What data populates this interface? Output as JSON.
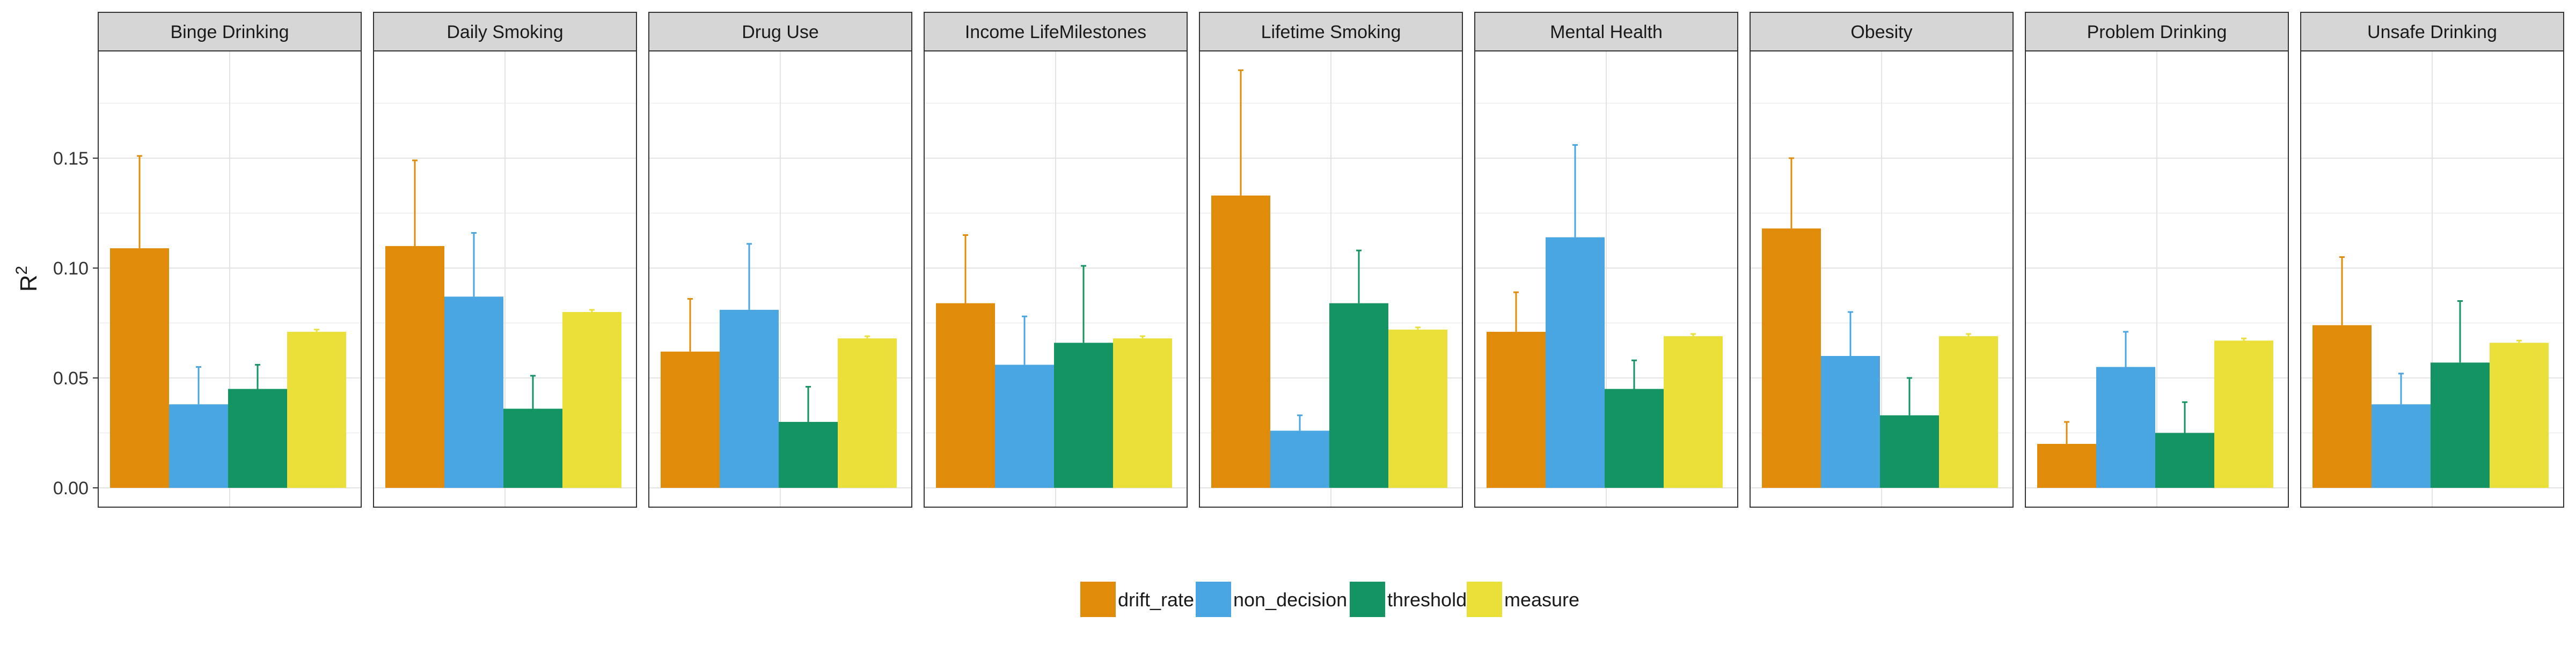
{
  "chart_data": {
    "type": "bar",
    "ylabel": "R",
    "ylabel_superscript": "2",
    "ylim": [
      0,
      0.2
    ],
    "yticks": [
      0.0,
      0.05,
      0.1,
      0.15
    ],
    "ytick_labels": [
      "0.00",
      "0.05",
      "0.10",
      "0.15"
    ],
    "grid": true,
    "legend_position": "bottom",
    "series": [
      {
        "name": "drift_rate",
        "color": "#E08C0A"
      },
      {
        "name": "non_decision",
        "color": "#4AA5E3"
      },
      {
        "name": "threshold",
        "color": "#149363"
      },
      {
        "name": "measure",
        "color": "#EBE03A"
      }
    ],
    "panels": [
      {
        "title": "Binge Drinking",
        "values": [
          0.109,
          0.038,
          0.045,
          0.071
        ],
        "errors": [
          0.042,
          0.017,
          0.011,
          0.001
        ]
      },
      {
        "title": "Daily Smoking",
        "values": [
          0.11,
          0.087,
          0.036,
          0.08
        ],
        "errors": [
          0.039,
          0.029,
          0.015,
          0.001
        ]
      },
      {
        "title": "Drug Use",
        "values": [
          0.062,
          0.081,
          0.03,
          0.068
        ],
        "errors": [
          0.024,
          0.03,
          0.016,
          0.001
        ]
      },
      {
        "title": "Income LifeMilestones",
        "values": [
          0.084,
          0.056,
          0.066,
          0.068
        ],
        "errors": [
          0.031,
          0.022,
          0.035,
          0.001
        ]
      },
      {
        "title": "Lifetime Smoking",
        "values": [
          0.133,
          0.026,
          0.084,
          0.072
        ],
        "errors": [
          0.057,
          0.007,
          0.024,
          0.001
        ]
      },
      {
        "title": "Mental Health",
        "values": [
          0.071,
          0.114,
          0.045,
          0.069
        ],
        "errors": [
          0.018,
          0.042,
          0.013,
          0.001
        ]
      },
      {
        "title": "Obesity",
        "values": [
          0.118,
          0.06,
          0.033,
          0.069
        ],
        "errors": [
          0.032,
          0.02,
          0.017,
          0.001
        ]
      },
      {
        "title": "Problem Drinking",
        "values": [
          0.02,
          0.055,
          0.025,
          0.067
        ],
        "errors": [
          0.01,
          0.016,
          0.014,
          0.001
        ]
      },
      {
        "title": "Unsafe Drinking",
        "values": [
          0.074,
          0.038,
          0.057,
          0.066
        ],
        "errors": [
          0.031,
          0.014,
          0.028,
          0.001
        ]
      }
    ]
  }
}
